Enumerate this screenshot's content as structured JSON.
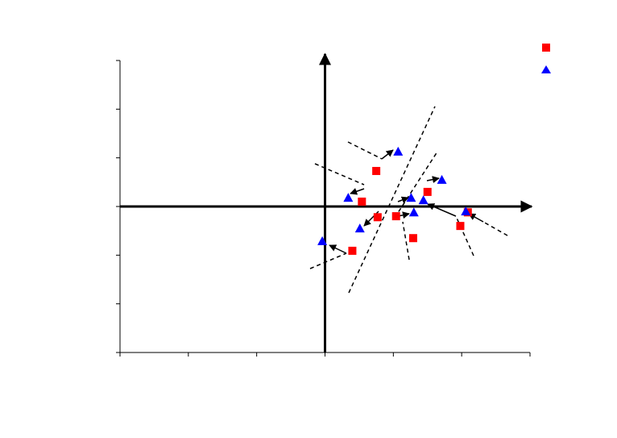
{
  "chart_data": {
    "type": "scatter",
    "xlim": [
      -3,
      3
    ],
    "ylim": [
      -3,
      3
    ],
    "xticks": [
      -3,
      -2,
      -1,
      0,
      1,
      2,
      3
    ],
    "yticks": [
      -3,
      -2,
      -1,
      0,
      1,
      2,
      3
    ],
    "series": [
      {
        "color": "#ff0000",
        "marker": "square",
        "x": [
          0.54,
          0.75,
          0.77,
          1.04,
          1.5,
          1.29,
          1.98,
          2.09,
          0.4
        ],
        "values": [
          0.1,
          0.73,
          -0.22,
          -0.2,
          0.3,
          -0.65,
          -0.4,
          -0.12,
          -0.91
        ]
      },
      {
        "color": "#0000ff",
        "marker": "triangle",
        "x": [
          1.07,
          0.34,
          1.26,
          1.44,
          1.71,
          1.3,
          0.51,
          -0.04,
          2.06
        ],
        "values": [
          1.13,
          0.18,
          0.18,
          0.13,
          0.55,
          -0.12,
          -0.45,
          -0.71,
          -0.1
        ]
      }
    ]
  }
}
